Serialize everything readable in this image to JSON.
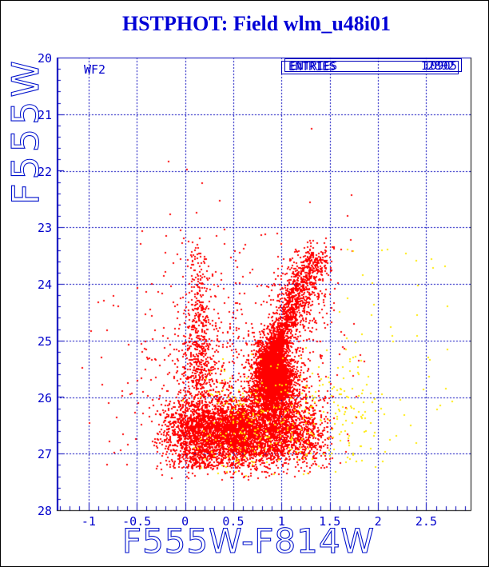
{
  "window": {
    "name": "HSTPHOT photometry plot window"
  },
  "chart_data": {
    "type": "scatter",
    "title": "HSTPHOT: Field wlm_u48i01",
    "xlabel": "F555W-F814W",
    "ylabel": "F555W",
    "detector_label": "WF2",
    "entries": {
      "label": "ENTRIES",
      "values": [
        "10905",
        "12892"
      ]
    },
    "xlim": [
      -1.33,
      2.96
    ],
    "ylim": [
      28,
      20
    ],
    "y_axis_inverted": true,
    "x_major_ticks": [
      -1,
      -0.5,
      0,
      0.5,
      1,
      1.5,
      2,
      2.5
    ],
    "x_tick_labels": [
      "-1",
      "-0.5",
      "0",
      "0.5",
      "1",
      "1.5",
      "2",
      "2.5"
    ],
    "y_major_ticks": [
      20,
      21,
      22,
      23,
      24,
      25,
      26,
      27,
      28
    ],
    "y_tick_labels": [
      "20",
      "21",
      "22",
      "23",
      "24",
      "25",
      "26",
      "27",
      "28"
    ],
    "x_minor_step": 0.1,
    "y_minor_step": 0.2,
    "grid": "dashed lines at major ticks, both axes",
    "legend_position": "none",
    "colors": {
      "frame_blue": "#0000bb",
      "frame_black": "#000000",
      "grid": "#0000bb",
      "text_blue": "#0000cc",
      "title_blue": "#0000d6",
      "point_primary": "#ff0000",
      "point_secondary": "#ffe800"
    },
    "description": "Color-magnitude diagram of field wlm_u48i01 (WF2 chip): red clump + red giant branch around F555W-F814W ~ 0.9-1.3, blue plume at ~0.1, dense faint swath at F555W 26-27.3, sparse yellow second-catalog points mostly redward of 1.2",
    "red_components": [
      {
        "type": "gauss",
        "n": 2600,
        "cx": 0.92,
        "cy": 25.68,
        "sx": 0.115,
        "sy": 0.34
      },
      {
        "type": "gauss",
        "n": 1400,
        "cx": 0.92,
        "cy": 25.66,
        "sx": 0.055,
        "sy": 0.17
      },
      {
        "type": "branch",
        "n": 1300,
        "x0": 0.86,
        "y0": 25.35,
        "x1": 1.34,
        "y1": 23.45,
        "sx0": 0.045,
        "sx1": 0.1,
        "sy": 0.11,
        "tpow": 1.6
      },
      {
        "type": "gauss",
        "n": 260,
        "cx": 1.2,
        "cy": 24.25,
        "sx": 0.2,
        "sy": 0.5,
        "clip": [
          0.85,
          1.65,
          23.1,
          25.2
        ]
      },
      {
        "type": "plume",
        "n": 950,
        "cx": 0.14,
        "sx0": 0.055,
        "sx1": 0.14,
        "ytop": 23.2,
        "ybot": 27.25,
        "ypow": 0.55
      },
      {
        "type": "tri-gauss",
        "n": 4300,
        "xa": -0.35,
        "xb": 1.55,
        "cy": 26.6,
        "sy": 0.3,
        "ymin": 25.6,
        "ymax": 27.45
      },
      {
        "type": "gauss",
        "n": 750,
        "cx": 0.55,
        "cy": 25.7,
        "sx": 0.62,
        "sy": 1.15,
        "clip": [
          -1.25,
          1.85,
          22.9,
          27.45
        ]
      }
    ],
    "yellow_components": [
      {
        "type": "tri-gauss",
        "n": 150,
        "xa": -0.1,
        "xb": 1.5,
        "cy": 26.7,
        "sy": 0.35,
        "ymin": 25.7,
        "ymax": 27.4
      },
      {
        "type": "gauss",
        "n": 120,
        "cx": 1.6,
        "cy": 26.3,
        "sx": 0.28,
        "sy": 0.6,
        "clip": [
          1.2,
          2.15,
          25.0,
          27.4
        ]
      },
      {
        "type": "gauss",
        "n": 60,
        "cx": 0.7,
        "cy": 25.9,
        "sx": 0.35,
        "sy": 0.4,
        "clip": [
          0.1,
          1.3,
          25.2,
          26.5
        ]
      },
      {
        "type": "uniform",
        "n": 45,
        "xa": 1.55,
        "xb": 2.85,
        "ya": 23.3,
        "yb": 27.2
      }
    ],
    "bright_stars_red": [
      [
        1.3,
        21.24
      ],
      [
        -0.18,
        21.82
      ],
      [
        0.01,
        21.97
      ],
      [
        0.17,
        22.2
      ],
      [
        0.35,
        22.52
      ],
      [
        1.29,
        22.55
      ],
      [
        1.72,
        22.42
      ],
      [
        -0.16,
        22.75
      ],
      [
        0.11,
        22.73
      ],
      [
        1.68,
        22.78
      ],
      [
        0.4,
        23.02
      ],
      [
        0.95,
        23.1
      ],
      [
        -0.45,
        23.05
      ],
      [
        0.62,
        23.3
      ],
      [
        1.45,
        23.18
      ]
    ],
    "outliers_yellow": [
      [
        2.28,
        23.45
      ],
      [
        2.56,
        23.7
      ],
      [
        2.4,
        24.9
      ],
      [
        1.95,
        24.35
      ],
      [
        2.71,
        25.15
      ],
      [
        2.6,
        26.2
      ]
    ]
  }
}
